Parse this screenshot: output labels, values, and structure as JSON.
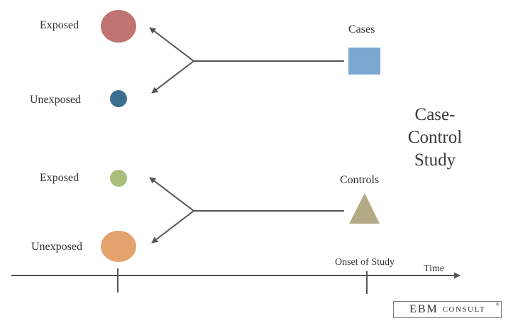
{
  "title_line1": "Case-Control",
  "title_line2": "Study",
  "cases": {
    "label": "Cases",
    "shape": "square",
    "color": "#7BA7D1",
    "outcomes": [
      {
        "label": "Exposed",
        "color": "#C07471",
        "relative_size": "large"
      },
      {
        "label": "Unexposed",
        "color": "#3C6E92",
        "relative_size": "small"
      }
    ]
  },
  "controls": {
    "label": "Controls",
    "shape": "triangle",
    "color": "#B5AA86",
    "outcomes": [
      {
        "label": "Exposed",
        "color": "#A9BD7C",
        "relative_size": "small"
      },
      {
        "label": "Unexposed",
        "color": "#E4A26D",
        "relative_size": "large"
      }
    ]
  },
  "timeline": {
    "onset_label": "Onset of Study",
    "time_label": "Time",
    "direction": "backward from onset"
  },
  "logo": {
    "main": "EBM",
    "sub": "CONSULT",
    "mark": "®"
  },
  "colors": {
    "line": "#555555",
    "text": "#333333"
  }
}
